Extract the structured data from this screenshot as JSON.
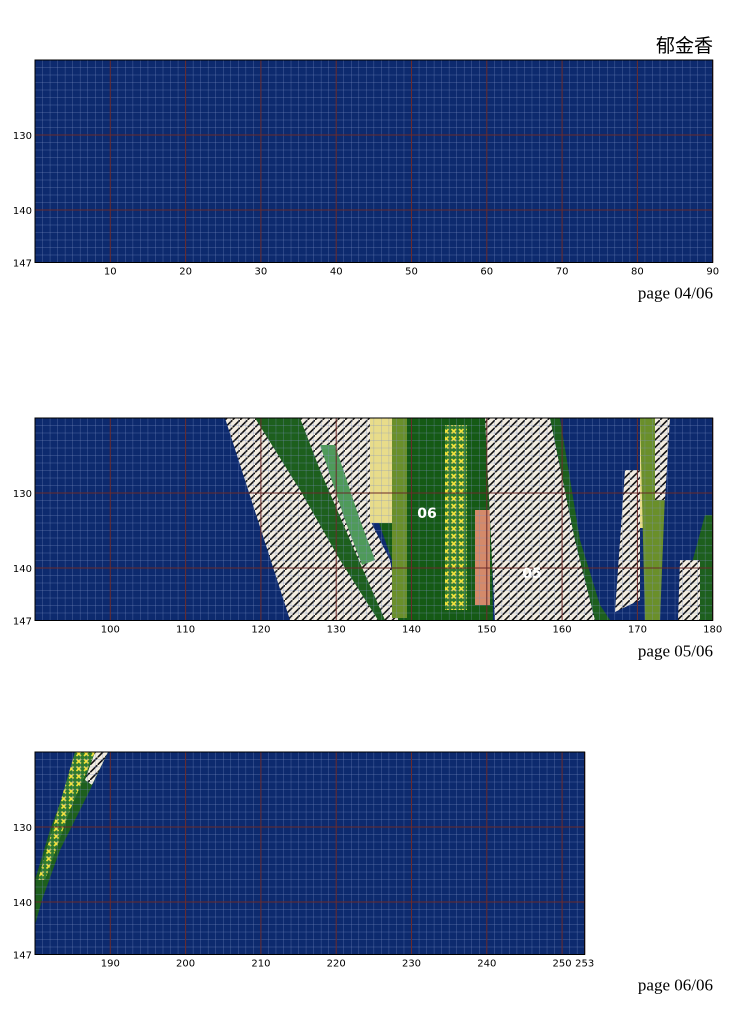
{
  "title": "郁金香",
  "panels": [
    {
      "label": "page 04/06",
      "xlim": [
        0,
        90
      ],
      "xticks": [
        10,
        20,
        30,
        40,
        50,
        60,
        70,
        80,
        90
      ],
      "ylim": [
        120,
        147
      ],
      "yticks": [
        130,
        140,
        147
      ]
    },
    {
      "label": "page 05/06",
      "xlim": [
        90,
        180
      ],
      "xticks": [
        100,
        110,
        120,
        130,
        140,
        150,
        160,
        170,
        180
      ],
      "ylim": [
        120,
        147
      ],
      "yticks": [
        130,
        140,
        147
      ]
    },
    {
      "label": "page 06/06",
      "xlim": [
        180,
        253
      ],
      "xticks": [
        190,
        200,
        210,
        220,
        230,
        240,
        250,
        253
      ],
      "ylim": [
        120,
        147
      ],
      "yticks": [
        130,
        140,
        147
      ]
    }
  ],
  "annotations": [
    {
      "text": "06"
    },
    {
      "text": "05"
    }
  ]
}
